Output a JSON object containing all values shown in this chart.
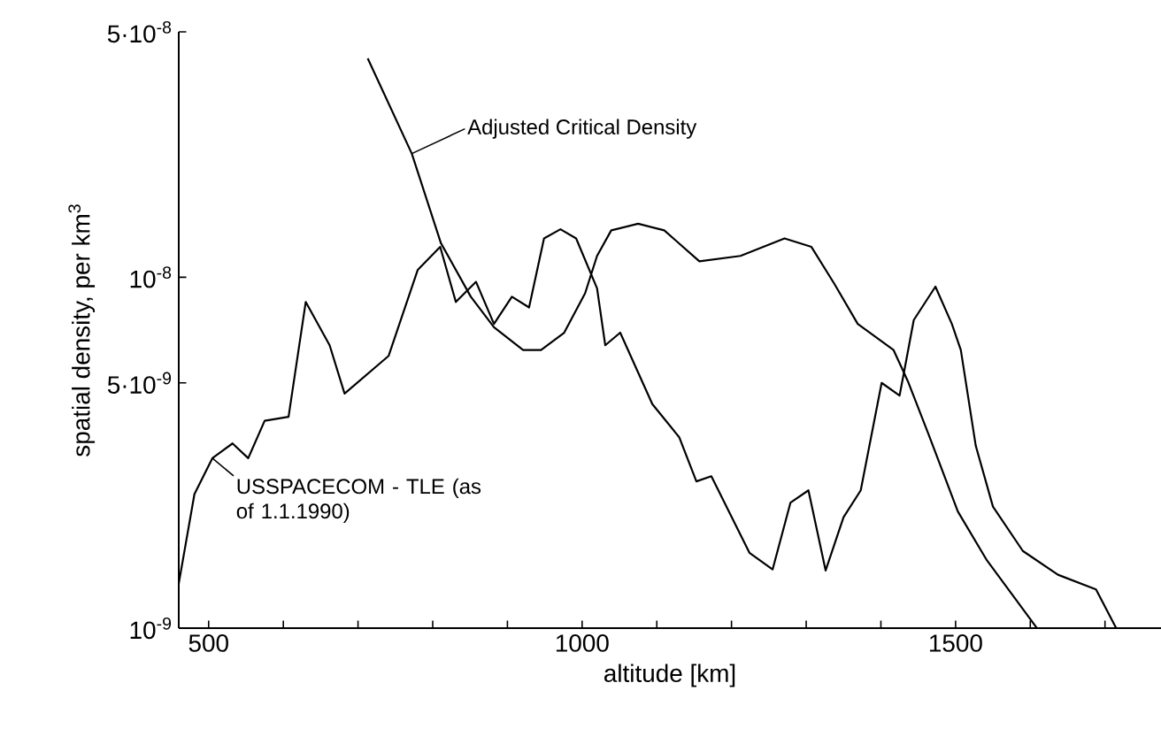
{
  "chart_data": {
    "type": "line",
    "xlabel": "altitude [km]",
    "ylabel": "spatial density, per km$^{3}$",
    "log": "y",
    "grid": false,
    "marker": "none",
    "line_style": "solid",
    "xlim": [
      460,
      1775
    ],
    "ylim": [
      1e-09,
      5e-08
    ],
    "xticks": [
      500,
      {
        "value": 600,
        "label": null
      },
      {
        "value": 700,
        "label": null
      },
      {
        "value": 800,
        "label": null
      },
      {
        "value": 900,
        "label": null
      },
      1000,
      {
        "value": 1100,
        "label": null
      },
      {
        "value": 1200,
        "label": null
      },
      {
        "value": 1300,
        "label": null
      },
      {
        "value": 1400,
        "label": null
      },
      1500,
      {
        "value": 1600,
        "label": null
      },
      {
        "value": 1700,
        "label": null
      }
    ],
    "yticks": [
      {
        "value": 1e-09,
        "label": "10$^{-9}$"
      },
      {
        "value": 5e-09,
        "label": "5·10$^{-9}$"
      },
      {
        "value": 1e-08,
        "label": "10$^{-8}$"
      },
      {
        "value": 5e-08,
        "label": "5·10$^{-8}$"
      }
    ],
    "series": [
      {
        "name": "Adjusted Critical Density",
        "color": "#000000",
        "x": [
          713,
          772,
          811,
          851,
          882,
          921,
          945,
          976,
          1004,
          1020,
          1039,
          1075,
          1110,
          1157,
          1212,
          1271,
          1307,
          1338,
          1369,
          1417,
          1436,
          1464,
          1503,
          1542,
          1609
        ],
        "values": [
          4.2e-08,
          2.25e-08,
          1.25e-08,
          8.8e-09,
          7.2e-09,
          6.2e-09,
          6.2e-09,
          6.95e-09,
          9e-09,
          1.15e-08,
          1.36e-08,
          1.42e-08,
          1.36e-08,
          1.11e-08,
          1.15e-08,
          1.29e-08,
          1.22e-08,
          9.55e-09,
          7.36e-09,
          6.2e-09,
          5.06e-09,
          3.56e-09,
          2.15e-09,
          1.56e-09,
          1e-09
        ]
      },
      {
        "name": "USSPACECOM - TLE (as of 1.1.1990)",
        "color": "#000000",
        "x": [
          460,
          481,
          505,
          532,
          553,
          575,
          607,
          630,
          662,
          682,
          741,
          780,
          810,
          831,
          858,
          882,
          906,
          929,
          949,
          971,
          992,
          1020,
          1031,
          1051,
          1094,
          1130,
          1153,
          1173,
          1224,
          1255,
          1279,
          1303,
          1326,
          1350,
          1373,
          1401,
          1425,
          1431,
          1444,
          1473,
          1495,
          1507,
          1527,
          1550,
          1590,
          1637,
          1688,
          1715
        ],
        "values": [
          1.34e-09,
          2.41e-09,
          3.05e-09,
          3.36e-09,
          3.05e-09,
          3.9e-09,
          4e-09,
          8.5e-09,
          6.4e-09,
          4.66e-09,
          5.97e-09,
          1.05e-08,
          1.22e-08,
          8.5e-09,
          9.7e-09,
          7.36e-09,
          8.8e-09,
          8.2e-09,
          1.29e-08,
          1.37e-08,
          1.29e-08,
          9.3e-09,
          6.4e-09,
          6.95e-09,
          4.35e-09,
          3.5e-09,
          2.62e-09,
          2.71e-09,
          1.64e-09,
          1.47e-09,
          2.28e-09,
          2.47e-09,
          1.46e-09,
          2.07e-09,
          2.47e-09,
          5e-09,
          4.6e-09,
          5.37e-09,
          7.55e-09,
          9.4e-09,
          7.36e-09,
          6.2e-09,
          3.31e-09,
          2.22e-09,
          1.66e-09,
          1.42e-09,
          1.29e-09,
          1e-09
        ]
      }
    ]
  }
}
